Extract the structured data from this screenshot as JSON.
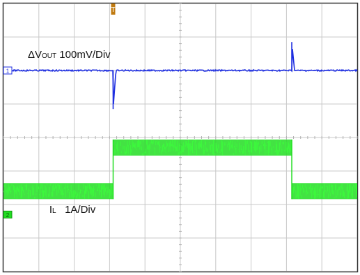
{
  "chart_data": {
    "type": "line",
    "title": "",
    "xlabel": "",
    "ylabel": "",
    "grid": true,
    "grid_divisions": {
      "horizontal": 10,
      "vertical": 8
    },
    "trigger_marker": "T",
    "channels": [
      {
        "id": "1",
        "label_main": "ΔV",
        "label_sub": "OUT",
        "label_rest": " 100mV/Div",
        "color": "#1f2fe0",
        "scale": "100mV/Div",
        "baseline_div": 2.0,
        "noise_div": 0.04,
        "events": [
          {
            "time_div": 3.1,
            "shape": "undershoot",
            "amplitude_div": -1.15
          },
          {
            "time_div": 8.15,
            "shape": "overshoot",
            "amplitude_div": 0.85
          }
        ]
      },
      {
        "id": "2",
        "label_main": "I",
        "label_sub": "L",
        "label_rest": "   1A/Div",
        "color": "#22dd22",
        "scale": "1A/Div",
        "levels": [
          {
            "from_div": 0.0,
            "to_div": 3.1,
            "level_div": 5.6
          },
          {
            "from_div": 3.1,
            "to_div": 8.15,
            "level_div": 4.3
          },
          {
            "from_div": 8.15,
            "to_div": 10.0,
            "level_div": 5.6
          }
        ],
        "band_div": 0.48
      }
    ]
  }
}
